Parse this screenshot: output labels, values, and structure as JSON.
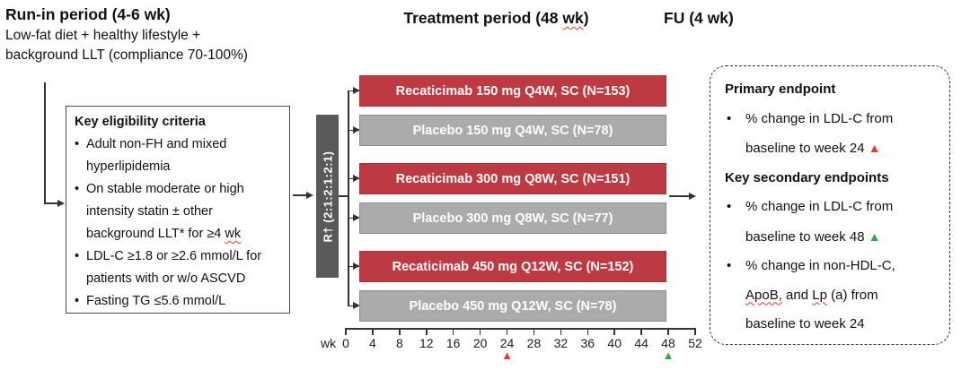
{
  "colors": {
    "active_bar": "#BE3A42",
    "placebo_bar": "#ABABAB",
    "randomization_box": "#595959",
    "marker_red": "#E8392C",
    "marker_green": "#2BA84C",
    "line": "#333333",
    "squiggle": "#E23B2E"
  },
  "icons": {
    "triangle": "▲",
    "bullet": "•"
  },
  "headers": {
    "run_in_title": "Run-in period (4-6 wk)",
    "run_in_sub1": "Low-fat diet + healthy lifestyle +",
    "run_in_sub2": "background LLT (compliance 70-100%)",
    "treatment_pre": "Treatment period (48",
    "treatment_wk": "wk",
    "treatment_close": ")",
    "fu_title": "FU (4 wk)"
  },
  "eligibility": {
    "title": "Key eligibility criteria",
    "item1": {
      "line1": "Adult non-FH and mixed",
      "line2": "hyperlipidemia"
    },
    "item2": {
      "line1": "On stable moderate or high",
      "line2": "intensity statin ± other",
      "line3_pre": "background LLT* for ≥4",
      "line3_sp": "wk"
    },
    "item3": {
      "line1": "LDL-C ≥1.8 or ≥2.6 mmol/L for",
      "line2": "patients with or w/o ASCVD"
    },
    "item4": {
      "line1": "Fasting TG ≤5.6 mmol/L"
    }
  },
  "randomization": {
    "label": "R† (2:1:2:1:2:1)"
  },
  "arms": [
    {
      "label": "Recaticimab 150 mg Q4W, SC (N=153)",
      "type": "active"
    },
    {
      "label": "Placebo 150 mg Q4W, SC (N=78)",
      "type": "placebo"
    },
    {
      "label": "Recaticimab 300 mg Q8W, SC (N=151)",
      "type": "active"
    },
    {
      "label": "Placebo 300 mg Q8W, SC (N=77)",
      "type": "placebo"
    },
    {
      "label": "Recaticimab 450 mg Q12W, SC (N=152)",
      "type": "active"
    },
    {
      "label": "Placebo 450 mg Q12W, SC (N=78)",
      "type": "placebo"
    }
  ],
  "axis": {
    "unit": "wk",
    "ticks": [
      "0",
      "4",
      "8",
      "12",
      "16",
      "20",
      "24",
      "28",
      "32",
      "36",
      "40",
      "44",
      "48",
      "52"
    ],
    "red_marker_tick": "24",
    "green_marker_tick": "48"
  },
  "endpoints": {
    "primary_title": "Primary endpoint",
    "primary_item": {
      "line1": "% change in LDL-C from",
      "line2": "baseline to week 24"
    },
    "secondary_title": "Key secondary endpoints",
    "secondary_item1": {
      "line1": "% change in LDL-C from",
      "line2": "baseline to week 48"
    },
    "secondary_item2": {
      "line1": "% change in non-HDL-C,",
      "line2_sp1": "ApoB,",
      "line2_mid": "and",
      "line2_sp2": "Lp",
      "line2_post": "(a) from",
      "line3": "baseline to week 24"
    }
  }
}
